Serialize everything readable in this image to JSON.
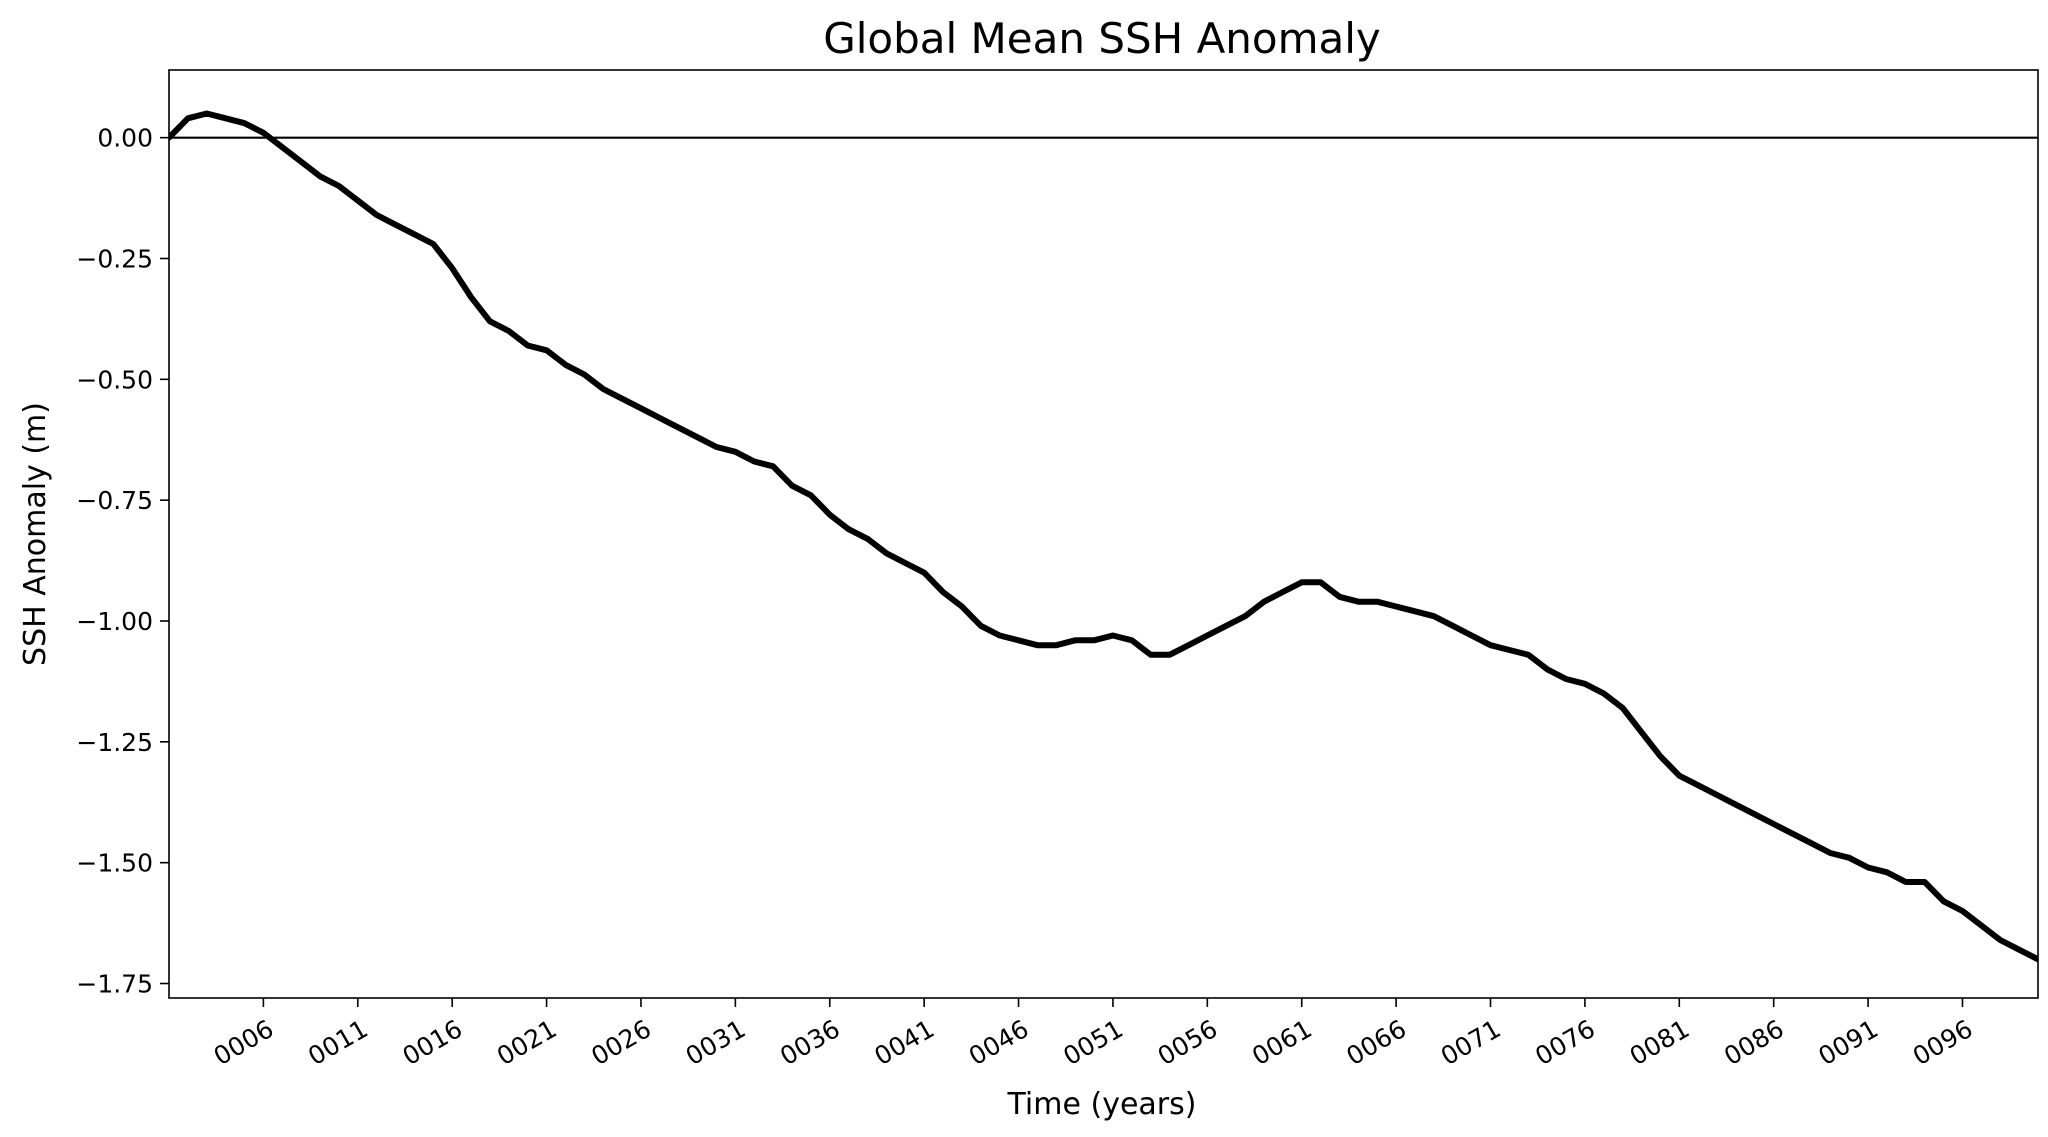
{
  "chart_data": {
    "type": "line",
    "title": "Global Mean SSH Anomaly",
    "xlabel": "Time (years)",
    "ylabel": "SSH Anomaly (m)",
    "xlim": [
      1,
      100
    ],
    "ylim": [
      -1.78,
      0.14
    ],
    "x_tick_values": [
      6,
      11,
      16,
      21,
      26,
      31,
      36,
      41,
      46,
      51,
      56,
      61,
      66,
      71,
      76,
      81,
      86,
      91,
      96
    ],
    "x_tick_labels": [
      "0006",
      "0011",
      "0016",
      "0021",
      "0026",
      "0031",
      "0036",
      "0041",
      "0046",
      "0051",
      "0056",
      "0061",
      "0066",
      "0071",
      "0076",
      "0081",
      "0086",
      "0091",
      "0096"
    ],
    "y_tick_values": [
      0.0,
      -0.25,
      -0.5,
      -0.75,
      -1.0,
      -1.25,
      -1.5,
      -1.75
    ],
    "y_tick_labels": [
      "0.00",
      "−0.25",
      "−0.50",
      "−0.75",
      "−1.00",
      "−1.25",
      "−1.50",
      "−1.75"
    ],
    "reference_line": {
      "y": 0.0,
      "color": "#000000"
    },
    "grid": false,
    "legend": "none",
    "series": [
      {
        "color": "#000000",
        "x": [
          1,
          2,
          3,
          4,
          5,
          6,
          7,
          8,
          9,
          10,
          11,
          12,
          13,
          14,
          15,
          16,
          17,
          18,
          19,
          20,
          21,
          22,
          23,
          24,
          25,
          26,
          27,
          28,
          29,
          30,
          31,
          32,
          33,
          34,
          35,
          36,
          37,
          38,
          39,
          40,
          41,
          42,
          43,
          44,
          45,
          46,
          47,
          48,
          49,
          50,
          51,
          52,
          53,
          54,
          55,
          56,
          57,
          58,
          59,
          60,
          61,
          62,
          63,
          64,
          65,
          66,
          67,
          68,
          69,
          70,
          71,
          72,
          73,
          74,
          75,
          76,
          77,
          78,
          79,
          80,
          81,
          82,
          83,
          84,
          85,
          86,
          87,
          88,
          89,
          90,
          91,
          92,
          93,
          94,
          95,
          96,
          97,
          98,
          99,
          100
        ],
        "values": [
          0.0,
          0.04,
          0.05,
          0.04,
          0.03,
          0.01,
          -0.02,
          -0.05,
          -0.08,
          -0.1,
          -0.13,
          -0.16,
          -0.18,
          -0.2,
          -0.22,
          -0.27,
          -0.33,
          -0.38,
          -0.4,
          -0.43,
          -0.44,
          -0.47,
          -0.49,
          -0.52,
          -0.54,
          -0.56,
          -0.58,
          -0.6,
          -0.62,
          -0.64,
          -0.65,
          -0.67,
          -0.68,
          -0.72,
          -0.74,
          -0.78,
          -0.81,
          -0.83,
          -0.86,
          -0.88,
          -0.9,
          -0.94,
          -0.97,
          -1.01,
          -1.03,
          -1.04,
          -1.05,
          -1.05,
          -1.04,
          -1.04,
          -1.03,
          -1.04,
          -1.07,
          -1.07,
          -1.05,
          -1.03,
          -1.01,
          -0.99,
          -0.96,
          -0.94,
          -0.92,
          -0.92,
          -0.95,
          -0.96,
          -0.96,
          -0.97,
          -0.98,
          -0.99,
          -1.01,
          -1.03,
          -1.05,
          -1.06,
          -1.07,
          -1.1,
          -1.12,
          -1.13,
          -1.15,
          -1.18,
          -1.23,
          -1.28,
          -1.32,
          -1.34,
          -1.36,
          -1.38,
          -1.4,
          -1.42,
          -1.44,
          -1.46,
          -1.48,
          -1.49,
          -1.51,
          -1.52,
          -1.54,
          -1.54,
          -1.58,
          -1.6,
          -1.63,
          -1.66,
          -1.68,
          -1.7
        ]
      }
    ]
  }
}
